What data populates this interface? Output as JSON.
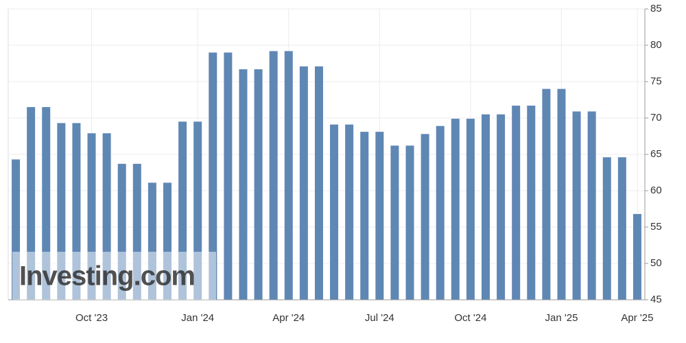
{
  "chart_data": {
    "type": "bar",
    "watermark": "Investing.com",
    "categories": [
      null,
      null,
      null,
      null,
      null,
      "Oct '23",
      null,
      null,
      null,
      null,
      null,
      null,
      "Jan '24",
      null,
      null,
      null,
      null,
      null,
      "Apr '24",
      null,
      null,
      null,
      null,
      null,
      "Jul '24",
      null,
      null,
      null,
      null,
      null,
      "Oct '24",
      null,
      null,
      null,
      null,
      null,
      "Jan '25",
      null,
      null,
      null,
      null,
      "Apr '25"
    ],
    "values": [
      64.3,
      71.5,
      71.5,
      69.3,
      69.3,
      67.9,
      67.9,
      63.7,
      63.7,
      61.1,
      61.1,
      69.5,
      69.5,
      79.0,
      79.0,
      76.7,
      76.7,
      79.2,
      79.2,
      77.1,
      77.1,
      69.1,
      69.1,
      68.1,
      68.1,
      66.2,
      66.2,
      67.8,
      68.9,
      69.9,
      69.9,
      70.5,
      70.5,
      71.7,
      71.7,
      74.0,
      74.0,
      70.9,
      70.9,
      64.6,
      64.6,
      56.8
    ],
    "color": "#5f87b4",
    "ylim": [
      45,
      85
    ],
    "yticks": [
      45,
      50,
      55,
      60,
      65,
      70,
      75,
      80,
      85
    ],
    "grid": true
  }
}
